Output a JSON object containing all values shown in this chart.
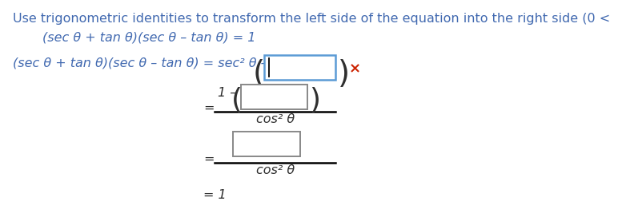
{
  "bg_color": "#ffffff",
  "text_color_blue": "#4169B0",
  "text_color_dark": "#2E2E2E",
  "text_color_red": "#CC2200",
  "box_border_blue": "#5B9BD5",
  "box_border_gray": "#888888",
  "line1": "Use trigonometric identities to transform the left side of the equation into the right side (0 <",
  "line2_left": "(sec θ + tan θ)(sec θ – tan θ) = 1",
  "line3_left": "(sec θ + tan θ)(sec θ – tan θ) = sec² θ –",
  "frac1_num_prefix": "1 –",
  "frac1_den": "cos² θ",
  "frac2_den": "cos² θ",
  "eq_sign": "=",
  "eq1_final": "= 1",
  "x_mark": "×"
}
